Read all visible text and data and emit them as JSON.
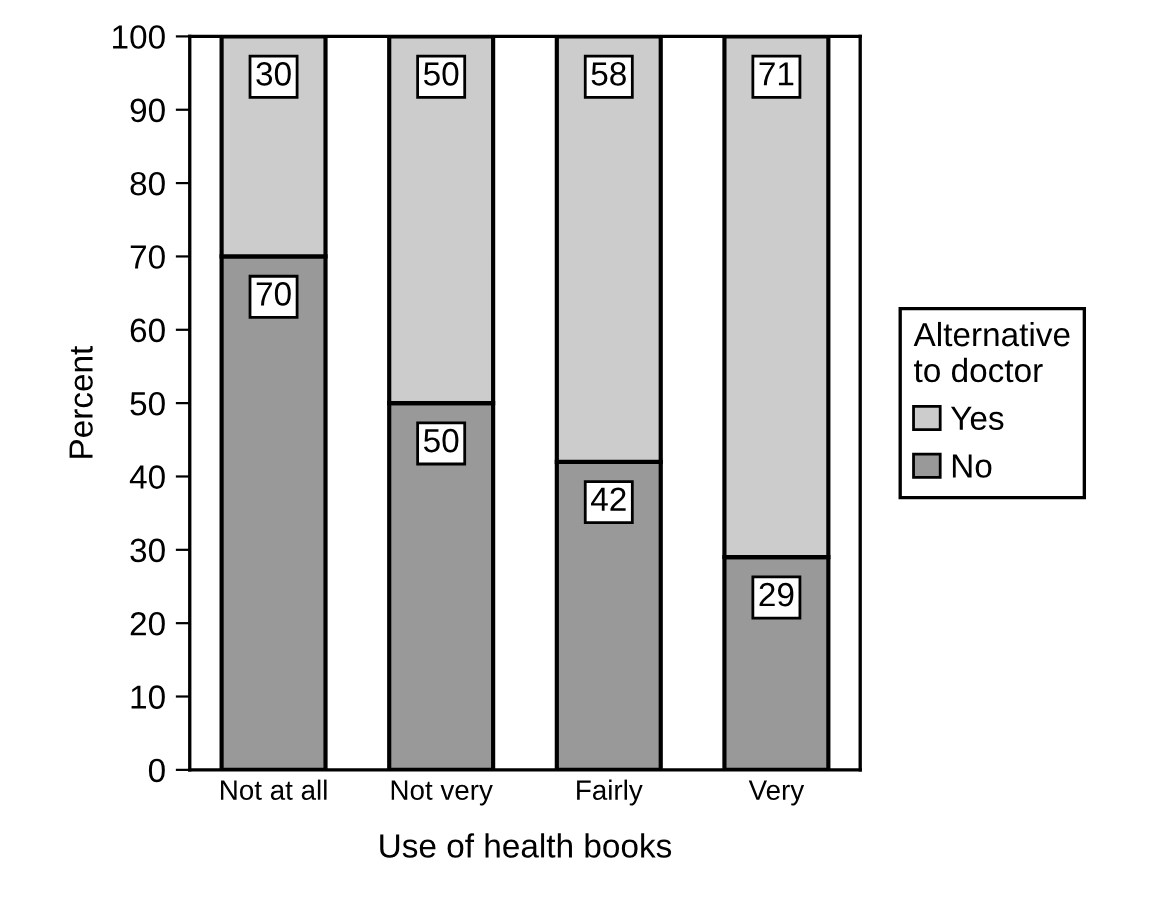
{
  "chart_data": {
    "type": "bar",
    "stacked": true,
    "xlabel": "Use of health books",
    "ylabel": "Percent",
    "legend_title": "Alternative\nto doctor",
    "legend": "right",
    "data_labels": true,
    "grid": false,
    "categories": [
      "Not at all",
      "Not very",
      "Fairly",
      "Very"
    ],
    "series": [
      {
        "name": "No",
        "color": "#999999",
        "values": [
          70,
          50,
          42,
          29
        ]
      },
      {
        "name": "Yes",
        "color": "#cccccc",
        "values": [
          30,
          50,
          58,
          71
        ]
      }
    ],
    "ylim": [
      0,
      100
    ],
    "yticks": [
      0,
      10,
      20,
      30,
      40,
      50,
      60,
      70,
      80,
      90,
      100
    ]
  }
}
